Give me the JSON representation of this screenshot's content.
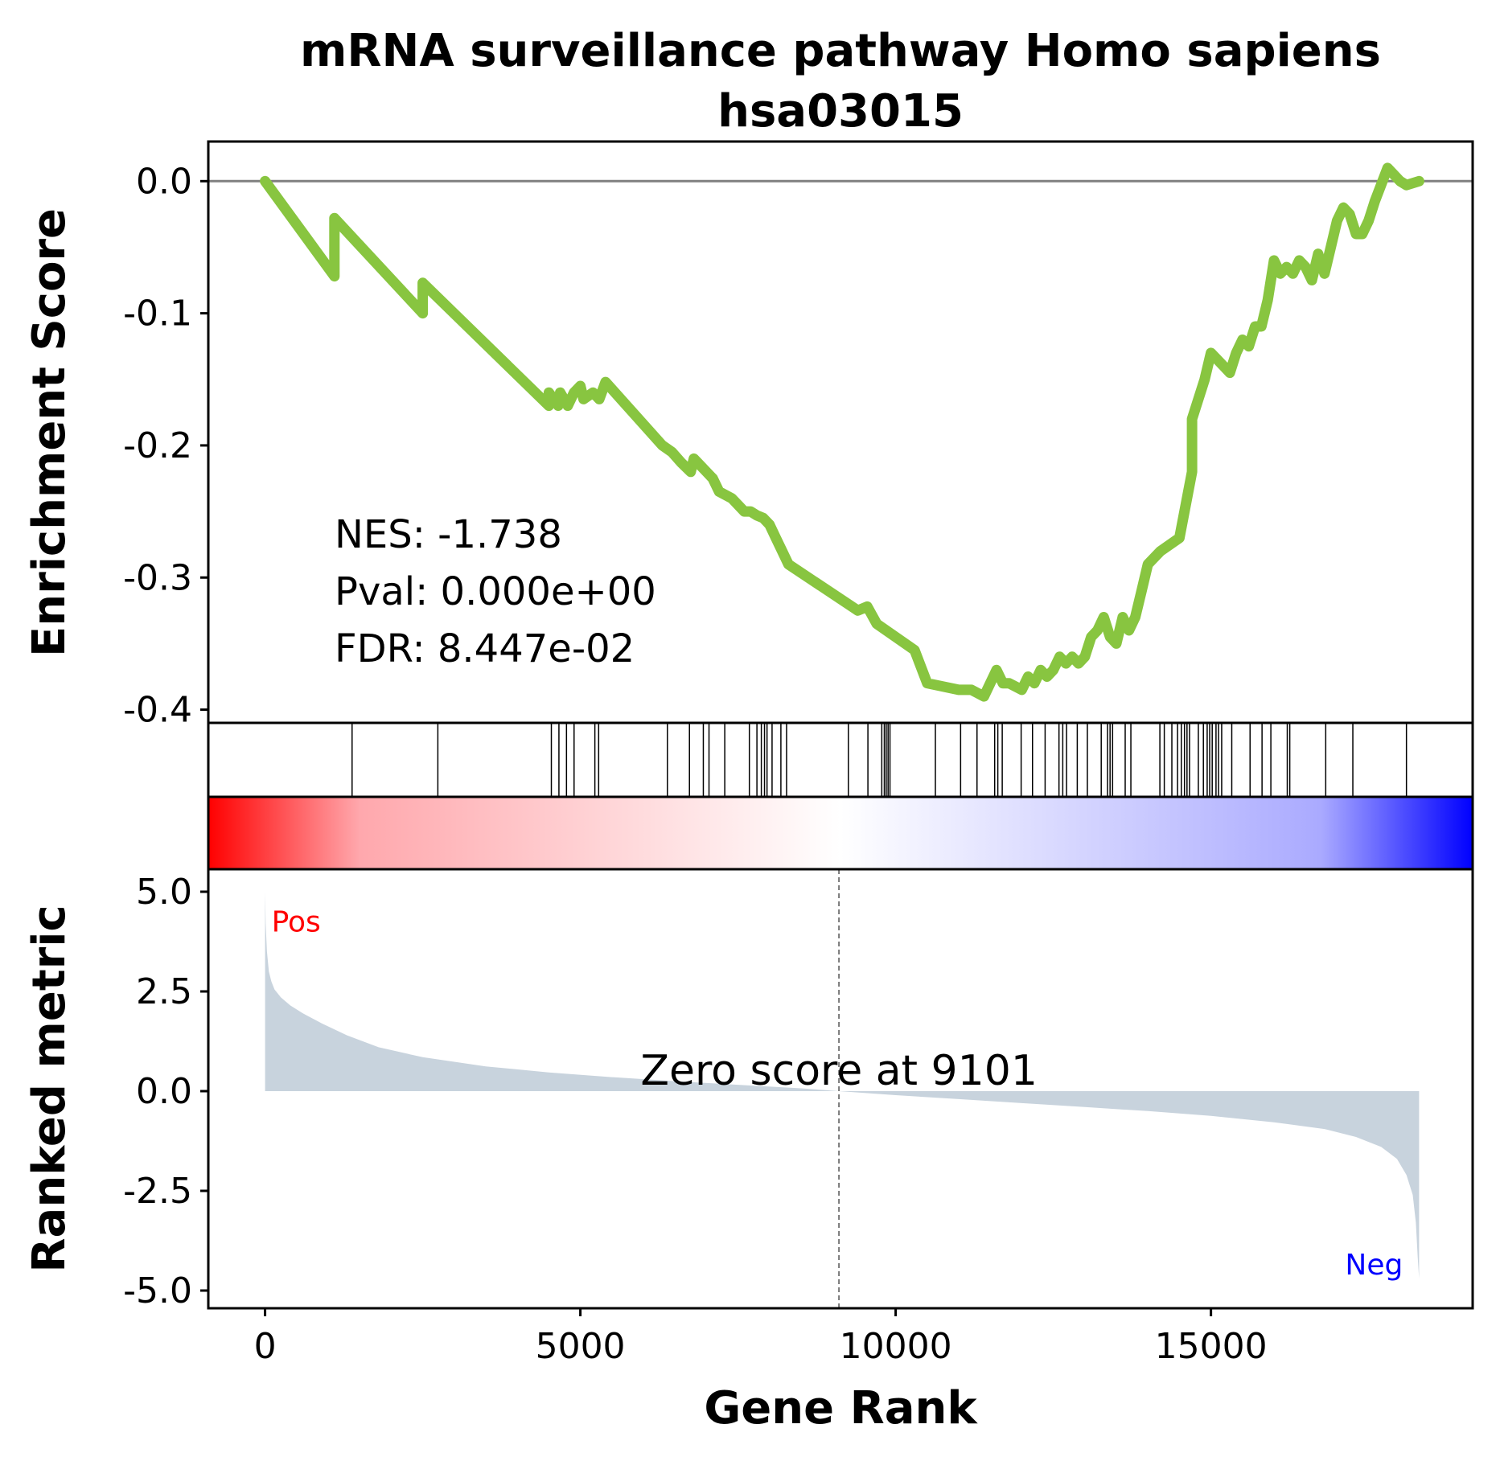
{
  "chart_data": {
    "type": "line",
    "title": "mRNA surveillance pathway Homo sapiens",
    "subtitle": "hsa03015",
    "xlabel": "Gene Rank",
    "enrichment_plot": {
      "ylabel": "Enrichment Score",
      "ylim": [
        -0.41,
        0.03
      ],
      "yticks": [
        0.0,
        -0.1,
        -0.2,
        -0.3,
        -0.4
      ],
      "ytick_labels": [
        "0.0",
        "-0.1",
        "-0.2",
        "-0.3",
        "-0.4"
      ],
      "line_color": "#88c540",
      "baseline_color": "#808080",
      "series": [
        {
          "x": [
            0,
            1100,
            1100,
            2500,
            2500,
            4500,
            4500,
            4650,
            4680,
            4800,
            4900,
            5000,
            5050,
            5200,
            5300,
            5400,
            6300,
            6450,
            6600,
            6750,
            6800,
            6900,
            7000,
            7100,
            7200,
            7400,
            7500,
            7600,
            7700,
            7800,
            7900,
            8000,
            8100,
            8200,
            8300,
            9400,
            9550,
            9700,
            10300,
            10500,
            11000,
            11200,
            11400,
            11500,
            11600,
            11700,
            11800,
            12000,
            12100,
            12200,
            12300,
            12400,
            12500,
            12600,
            12700,
            12800,
            12900,
            13000,
            13100,
            13200,
            13300,
            13400,
            13500,
            13600,
            13700,
            13800,
            13900,
            14000,
            14200,
            14500,
            14700,
            14700,
            14900,
            15000,
            15100,
            15200,
            15300,
            15400,
            15500,
            15600,
            15700,
            15800,
            15900,
            16000,
            16100,
            16200,
            16300,
            16400,
            16500,
            16600,
            16700,
            16800,
            16900,
            17000,
            17100,
            17200,
            17300,
            17400,
            17500,
            17600,
            17800,
            18000,
            18100,
            18300
          ],
          "values": [
            0.0,
            -0.072,
            -0.028,
            -0.1,
            -0.077,
            -0.17,
            -0.16,
            -0.17,
            -0.16,
            -0.17,
            -0.16,
            -0.155,
            -0.165,
            -0.16,
            -0.165,
            -0.152,
            -0.2,
            -0.205,
            -0.213,
            -0.22,
            -0.21,
            -0.215,
            -0.22,
            -0.225,
            -0.235,
            -0.24,
            -0.245,
            -0.25,
            -0.25,
            -0.253,
            -0.255,
            -0.26,
            -0.27,
            -0.28,
            -0.29,
            -0.325,
            -0.322,
            -0.335,
            -0.355,
            -0.38,
            -0.385,
            -0.385,
            -0.39,
            -0.38,
            -0.37,
            -0.38,
            -0.38,
            -0.385,
            -0.375,
            -0.38,
            -0.37,
            -0.375,
            -0.37,
            -0.36,
            -0.365,
            -0.36,
            -0.365,
            -0.36,
            -0.345,
            -0.34,
            -0.33,
            -0.345,
            -0.35,
            -0.33,
            -0.34,
            -0.33,
            -0.31,
            -0.29,
            -0.28,
            -0.27,
            -0.22,
            -0.18,
            -0.15,
            -0.13,
            -0.135,
            -0.14,
            -0.145,
            -0.13,
            -0.12,
            -0.125,
            -0.11,
            -0.11,
            -0.09,
            -0.06,
            -0.07,
            -0.065,
            -0.07,
            -0.06,
            -0.065,
            -0.075,
            -0.055,
            -0.07,
            -0.05,
            -0.03,
            -0.02,
            -0.025,
            -0.04,
            -0.04,
            -0.03,
            -0.015,
            0.01,
            0.0,
            -0.003,
            0.0
          ]
        }
      ],
      "annotations": {
        "nes": "NES: -1.738",
        "pval": "Pval: 0.000e+00",
        "fdr": "FDR: 8.447e-02"
      }
    },
    "hit_positions": [
      1380,
      2740,
      4540,
      4660,
      4780,
      4900,
      5230,
      5290,
      6380,
      6730,
      6950,
      7040,
      7290,
      7680,
      7800,
      7870,
      7920,
      7960,
      8040,
      8180,
      8270,
      9250,
      9560,
      9780,
      9820,
      9850,
      9880,
      9910,
      10630,
      11030,
      11290,
      11570,
      11620,
      11690,
      11990,
      12170,
      12370,
      12590,
      12650,
      12710,
      12880,
      13040,
      13260,
      13360,
      13400,
      13440,
      13640,
      13730,
      14190,
      14260,
      14380,
      14470,
      14530,
      14580,
      14620,
      14660,
      14800,
      14880,
      14940,
      14980,
      15020,
      15080,
      15120,
      15170,
      15330,
      15620,
      15810,
      15950,
      16210,
      16250,
      16820,
      17250,
      18100
    ],
    "ranked_metric_plot": {
      "ylabel": "Ranked metric",
      "ylim": [
        -5.0,
        5.0
      ],
      "yticks": [
        5.0,
        2.5,
        0.0,
        -2.5,
        -5.0
      ],
      "ytick_labels": [
        "5.0",
        "2.5",
        "0.0",
        "-2.5",
        "-5.0"
      ],
      "fill_color": "#c8d3dd",
      "series": [
        {
          "x": [
            0,
            10,
            30,
            60,
            100,
            150,
            250,
            400,
            600,
            900,
            1300,
            1800,
            2500,
            3500,
            4500,
            5500,
            6500,
            7500,
            8500,
            9101,
            10000,
            11000,
            12000,
            13000,
            14000,
            15000,
            16000,
            16800,
            17300,
            17700,
            17950,
            18100,
            18200,
            18250,
            18280,
            18300
          ],
          "values": [
            5.0,
            4.2,
            3.5,
            3.0,
            2.75,
            2.55,
            2.35,
            2.15,
            1.95,
            1.7,
            1.4,
            1.1,
            0.85,
            0.62,
            0.47,
            0.35,
            0.25,
            0.16,
            0.07,
            0.0,
            -0.1,
            -0.2,
            -0.3,
            -0.4,
            -0.5,
            -0.62,
            -0.78,
            -0.95,
            -1.15,
            -1.4,
            -1.7,
            -2.1,
            -2.6,
            -3.3,
            -4.2,
            -4.7
          ]
        }
      ],
      "zero_crossing": 9101,
      "zero_label": "Zero score at 9101",
      "pos_label": "Pos",
      "neg_label": "Neg",
      "pos_color": "#ff0000",
      "neg_color": "#0000ff"
    },
    "xlim": [
      -900,
      19150
    ],
    "xticks": [
      0,
      5000,
      10000,
      15000
    ],
    "xtick_labels": [
      "0",
      "5000",
      "10000",
      "15000"
    ],
    "colorbar": {
      "from": "#ff0000",
      "mid": "#ffffff",
      "to": "#0000ff"
    },
    "grid": false
  }
}
